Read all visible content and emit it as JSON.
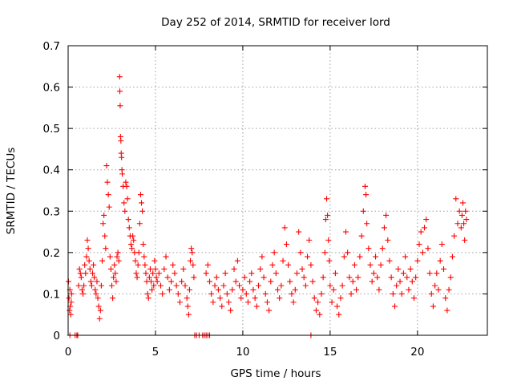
{
  "chart_data": {
    "type": "scatter",
    "title": "Day 252 of 2014, SRMTID for receiver lord",
    "xlabel": "GPS time / hours",
    "ylabel": "SRMTID / TECUs",
    "xlim": [
      0,
      24
    ],
    "ylim": [
      0,
      0.7
    ],
    "xticks": [
      0,
      5,
      10,
      15,
      20
    ],
    "xtick_labels": [
      "0",
      "5",
      "10",
      "15",
      "20"
    ],
    "yticks": [
      0,
      0.1,
      0.2,
      0.3,
      0.4,
      0.5,
      0.6,
      0.7
    ],
    "ytick_labels": [
      "0",
      "0.1",
      "0.2",
      "0.3",
      "0.4",
      "0.5",
      "0.6",
      "0.7"
    ],
    "grid": true,
    "marker": "+",
    "color": "#ff0000",
    "series": [
      {
        "name": "SRMTID",
        "points": [
          [
            0.02,
            0.13
          ],
          [
            0.05,
            0.09
          ],
          [
            0.08,
            0.06
          ],
          [
            0.1,
            0.11
          ],
          [
            0.12,
            0.07
          ],
          [
            0.15,
            0.05
          ],
          [
            0.18,
            0.08
          ],
          [
            0.2,
            0.1
          ],
          [
            0.1,
            0.0
          ],
          [
            0.4,
            0.0
          ],
          [
            0.5,
            0.0
          ],
          [
            0.55,
            0.0
          ],
          [
            0.6,
            0.12
          ],
          [
            0.65,
            0.16
          ],
          [
            0.7,
            0.15
          ],
          [
            0.75,
            0.14
          ],
          [
            0.8,
            0.11
          ],
          [
            0.85,
            0.1
          ],
          [
            0.9,
            0.12
          ],
          [
            0.95,
            0.17
          ],
          [
            1.0,
            0.15
          ],
          [
            1.05,
            0.19
          ],
          [
            1.1,
            0.23
          ],
          [
            1.15,
            0.21
          ],
          [
            1.2,
            0.18
          ],
          [
            1.25,
            0.16
          ],
          [
            1.3,
            0.13
          ],
          [
            1.35,
            0.12
          ],
          [
            1.4,
            0.15
          ],
          [
            1.45,
            0.17
          ],
          [
            1.5,
            0.14
          ],
          [
            1.55,
            0.11
          ],
          [
            1.6,
            0.1
          ],
          [
            1.65,
            0.13
          ],
          [
            1.7,
            0.09
          ],
          [
            1.75,
            0.07
          ],
          [
            1.8,
            0.04
          ],
          [
            1.85,
            0.06
          ],
          [
            1.9,
            0.12
          ],
          [
            1.95,
            0.18
          ],
          [
            2.0,
            0.27
          ],
          [
            2.05,
            0.29
          ],
          [
            2.1,
            0.24
          ],
          [
            2.15,
            0.21
          ],
          [
            2.2,
            0.41
          ],
          [
            2.25,
            0.37
          ],
          [
            2.3,
            0.34
          ],
          [
            2.35,
            0.31
          ],
          [
            2.4,
            0.19
          ],
          [
            2.45,
            0.16
          ],
          [
            2.5,
            0.12
          ],
          [
            2.55,
            0.09
          ],
          [
            2.6,
            0.14
          ],
          [
            2.65,
            0.17
          ],
          [
            2.7,
            0.15
          ],
          [
            2.75,
            0.13
          ],
          [
            2.8,
            0.19
          ],
          [
            2.85,
            0.2
          ],
          [
            2.9,
            0.18
          ],
          [
            2.95,
            0.625
          ],
          [
            2.96,
            0.59
          ],
          [
            2.98,
            0.555
          ],
          [
            3.0,
            0.48
          ],
          [
            3.02,
            0.47
          ],
          [
            3.04,
            0.44
          ],
          [
            3.06,
            0.43
          ],
          [
            3.08,
            0.4
          ],
          [
            3.1,
            0.39
          ],
          [
            3.15,
            0.36
          ],
          [
            3.2,
            0.32
          ],
          [
            3.25,
            0.3
          ],
          [
            3.3,
            0.37
          ],
          [
            3.35,
            0.36
          ],
          [
            3.4,
            0.33
          ],
          [
            3.45,
            0.28
          ],
          [
            3.5,
            0.26
          ],
          [
            3.55,
            0.24
          ],
          [
            3.6,
            0.22
          ],
          [
            3.65,
            0.21
          ],
          [
            3.7,
            0.24
          ],
          [
            3.75,
            0.23
          ],
          [
            3.8,
            0.2
          ],
          [
            3.85,
            0.18
          ],
          [
            3.9,
            0.15
          ],
          [
            3.95,
            0.14
          ],
          [
            4.0,
            0.17
          ],
          [
            4.05,
            0.2
          ],
          [
            4.1,
            0.27
          ],
          [
            4.15,
            0.34
          ],
          [
            4.2,
            0.32
          ],
          [
            4.25,
            0.3
          ],
          [
            4.3,
            0.22
          ],
          [
            4.35,
            0.19
          ],
          [
            4.4,
            0.17
          ],
          [
            4.45,
            0.15
          ],
          [
            4.5,
            0.13
          ],
          [
            4.55,
            0.1
          ],
          [
            4.6,
            0.09
          ],
          [
            4.65,
            0.14
          ],
          [
            4.7,
            0.16
          ],
          [
            4.75,
            0.13
          ],
          [
            4.8,
            0.11
          ],
          [
            4.85,
            0.15
          ],
          [
            4.9,
            0.12
          ],
          [
            4.95,
            0.18
          ],
          [
            5.0,
            0.16
          ],
          [
            5.05,
            0.14
          ],
          [
            5.1,
            0.13
          ],
          [
            5.2,
            0.15
          ],
          [
            5.3,
            0.12
          ],
          [
            5.4,
            0.1
          ],
          [
            5.5,
            0.16
          ],
          [
            5.6,
            0.19
          ],
          [
            5.7,
            0.14
          ],
          [
            5.8,
            0.11
          ],
          [
            5.9,
            0.13
          ],
          [
            6.0,
            0.17
          ],
          [
            6.1,
            0.15
          ],
          [
            6.2,
            0.12
          ],
          [
            6.3,
            0.1
          ],
          [
            6.4,
            0.08
          ],
          [
            6.5,
            0.13
          ],
          [
            6.6,
            0.16
          ],
          [
            6.7,
            0.12
          ],
          [
            6.8,
            0.09
          ],
          [
            6.85,
            0.07
          ],
          [
            6.9,
            0.05
          ],
          [
            6.95,
            0.11
          ],
          [
            7.0,
            0.18
          ],
          [
            7.05,
            0.21
          ],
          [
            7.1,
            0.2
          ],
          [
            7.15,
            0.17
          ],
          [
            7.2,
            0.14
          ],
          [
            7.25,
            0.0
          ],
          [
            7.35,
            0.0
          ],
          [
            7.5,
            0.0
          ],
          [
            7.7,
            0.0
          ],
          [
            7.8,
            0.0
          ],
          [
            7.9,
            0.0
          ],
          [
            8.0,
            0.0
          ],
          [
            8.1,
            0.0
          ],
          [
            7.9,
            0.15
          ],
          [
            8.0,
            0.17
          ],
          [
            8.1,
            0.13
          ],
          [
            8.2,
            0.1
          ],
          [
            8.3,
            0.08
          ],
          [
            8.4,
            0.12
          ],
          [
            8.5,
            0.14
          ],
          [
            8.6,
            0.11
          ],
          [
            8.7,
            0.09
          ],
          [
            8.8,
            0.07
          ],
          [
            8.9,
            0.12
          ],
          [
            9.0,
            0.15
          ],
          [
            9.1,
            0.1
          ],
          [
            9.2,
            0.08
          ],
          [
            9.3,
            0.06
          ],
          [
            9.4,
            0.11
          ],
          [
            9.5,
            0.16
          ],
          [
            9.6,
            0.13
          ],
          [
            9.7,
            0.18
          ],
          [
            9.8,
            0.12
          ],
          [
            9.9,
            0.09
          ],
          [
            10.0,
            0.11
          ],
          [
            10.1,
            0.14
          ],
          [
            10.2,
            0.1
          ],
          [
            10.3,
            0.08
          ],
          [
            10.4,
            0.13
          ],
          [
            10.5,
            0.15
          ],
          [
            10.6,
            0.11
          ],
          [
            10.7,
            0.09
          ],
          [
            10.8,
            0.07
          ],
          [
            10.9,
            0.12
          ],
          [
            11.0,
            0.16
          ],
          [
            11.1,
            0.19
          ],
          [
            11.2,
            0.14
          ],
          [
            11.3,
            0.1
          ],
          [
            11.4,
            0.08
          ],
          [
            11.5,
            0.06
          ],
          [
            11.6,
            0.13
          ],
          [
            11.7,
            0.17
          ],
          [
            11.8,
            0.2
          ],
          [
            11.9,
            0.15
          ],
          [
            12.0,
            0.11
          ],
          [
            12.1,
            0.09
          ],
          [
            12.2,
            0.12
          ],
          [
            12.3,
            0.18
          ],
          [
            12.4,
            0.26
          ],
          [
            12.5,
            0.22
          ],
          [
            12.6,
            0.17
          ],
          [
            12.7,
            0.13
          ],
          [
            12.8,
            0.1
          ],
          [
            12.9,
            0.08
          ],
          [
            13.0,
            0.11
          ],
          [
            13.1,
            0.15
          ],
          [
            13.2,
            0.25
          ],
          [
            13.3,
            0.2
          ],
          [
            13.4,
            0.16
          ],
          [
            13.5,
            0.14
          ],
          [
            13.6,
            0.12
          ],
          [
            13.7,
            0.19
          ],
          [
            13.8,
            0.23
          ],
          [
            13.9,
            0.17
          ],
          [
            13.9,
            0.0
          ],
          [
            14.0,
            0.13
          ],
          [
            14.1,
            0.09
          ],
          [
            14.2,
            0.06
          ],
          [
            14.3,
            0.08
          ],
          [
            14.4,
            0.05
          ],
          [
            14.5,
            0.1
          ],
          [
            14.6,
            0.14
          ],
          [
            14.7,
            0.2
          ],
          [
            14.75,
            0.28
          ],
          [
            14.8,
            0.33
          ],
          [
            14.85,
            0.29
          ],
          [
            14.9,
            0.23
          ],
          [
            14.95,
            0.18
          ],
          [
            15.0,
            0.12
          ],
          [
            15.1,
            0.08
          ],
          [
            15.2,
            0.11
          ],
          [
            15.3,
            0.15
          ],
          [
            15.4,
            0.07
          ],
          [
            15.5,
            0.05
          ],
          [
            15.6,
            0.09
          ],
          [
            15.7,
            0.12
          ],
          [
            15.8,
            0.19
          ],
          [
            15.9,
            0.25
          ],
          [
            16.0,
            0.2
          ],
          [
            16.1,
            0.14
          ],
          [
            16.2,
            0.1
          ],
          [
            16.3,
            0.13
          ],
          [
            16.4,
            0.17
          ],
          [
            16.5,
            0.11
          ],
          [
            16.6,
            0.14
          ],
          [
            16.7,
            0.19
          ],
          [
            16.8,
            0.24
          ],
          [
            16.9,
            0.3
          ],
          [
            17.0,
            0.36
          ],
          [
            17.05,
            0.34
          ],
          [
            17.1,
            0.27
          ],
          [
            17.2,
            0.21
          ],
          [
            17.3,
            0.17
          ],
          [
            17.4,
            0.13
          ],
          [
            17.5,
            0.15
          ],
          [
            17.6,
            0.19
          ],
          [
            17.7,
            0.14
          ],
          [
            17.8,
            0.11
          ],
          [
            17.9,
            0.17
          ],
          [
            18.0,
            0.21
          ],
          [
            18.1,
            0.26
          ],
          [
            18.2,
            0.29
          ],
          [
            18.3,
            0.23
          ],
          [
            18.4,
            0.18
          ],
          [
            18.5,
            0.14
          ],
          [
            18.6,
            0.1
          ],
          [
            18.7,
            0.07
          ],
          [
            18.8,
            0.12
          ],
          [
            18.9,
            0.16
          ],
          [
            19.0,
            0.13
          ],
          [
            19.1,
            0.1
          ],
          [
            19.2,
            0.15
          ],
          [
            19.3,
            0.19
          ],
          [
            19.4,
            0.14
          ],
          [
            19.5,
            0.11
          ],
          [
            19.6,
            0.16
          ],
          [
            19.7,
            0.13
          ],
          [
            19.8,
            0.09
          ],
          [
            19.9,
            0.14
          ],
          [
            20.0,
            0.18
          ],
          [
            20.1,
            0.22
          ],
          [
            20.2,
            0.25
          ],
          [
            20.3,
            0.2
          ],
          [
            20.4,
            0.26
          ],
          [
            20.5,
            0.28
          ],
          [
            20.6,
            0.21
          ],
          [
            20.7,
            0.15
          ],
          [
            20.8,
            0.1
          ],
          [
            20.9,
            0.07
          ],
          [
            21.0,
            0.12
          ],
          [
            21.1,
            0.15
          ],
          [
            21.2,
            0.11
          ],
          [
            21.3,
            0.18
          ],
          [
            21.4,
            0.22
          ],
          [
            21.5,
            0.16
          ],
          [
            21.6,
            0.09
          ],
          [
            21.7,
            0.06
          ],
          [
            21.8,
            0.11
          ],
          [
            21.9,
            0.14
          ],
          [
            22.0,
            0.19
          ],
          [
            22.1,
            0.24
          ],
          [
            22.2,
            0.33
          ],
          [
            22.3,
            0.27
          ],
          [
            22.4,
            0.3
          ],
          [
            22.5,
            0.26
          ],
          [
            22.55,
            0.29
          ],
          [
            22.6,
            0.32
          ],
          [
            22.65,
            0.27
          ],
          [
            22.7,
            0.23
          ],
          [
            22.75,
            0.3
          ],
          [
            22.8,
            0.28
          ]
        ]
      }
    ]
  }
}
